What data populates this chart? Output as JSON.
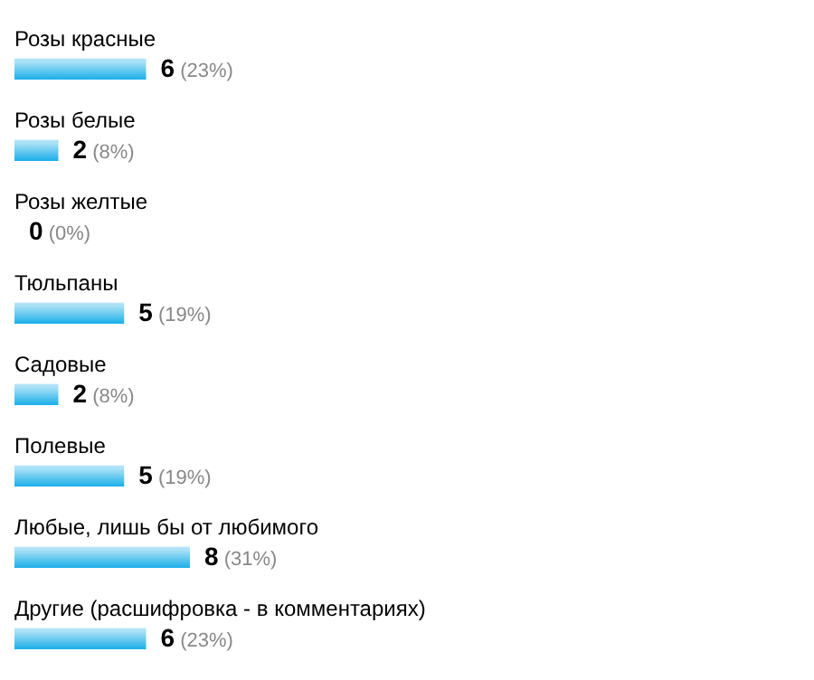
{
  "chart_data": {
    "type": "bar",
    "orientation": "horizontal",
    "categories": [
      "Розы красные",
      "Розы белые",
      "Розы желтые",
      "Тюльпаны",
      "Садовые",
      "Полевые",
      "Любые, лишь бы от любимого",
      "Другие (расшифровка - в комментариях)"
    ],
    "values": [
      6,
      2,
      0,
      5,
      2,
      5,
      8,
      6
    ],
    "value_labels": [
      "6 (23%)",
      "2 (8%)",
      "0 (0%)",
      "5 (19%)",
      "2 (8%)",
      "5 (19%)",
      "8 (31%)",
      "6 (23%)"
    ],
    "color": "#1aaee8",
    "legend": false,
    "grid": false
  }
}
